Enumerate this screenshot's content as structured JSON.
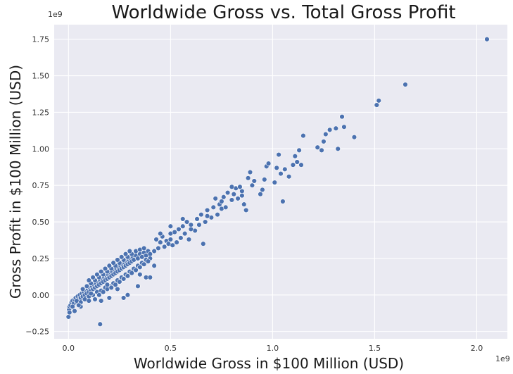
{
  "chart_data": {
    "type": "scatter",
    "title": "Worldwide Gross vs. Total Gross Profit",
    "xlabel": "Worldwide Gross in $100 Million (USD)",
    "ylabel": "Gross Profit in $100 Million (USD)",
    "x_offset_label": "1e9",
    "y_offset_label": "1e9",
    "xlim": [
      -0.07,
      2.15
    ],
    "ylim": [
      -0.3,
      1.85
    ],
    "x_ticks": [
      0.0,
      0.5,
      1.0,
      1.5,
      2.0
    ],
    "x_tick_labels": [
      "0.0",
      "0.5",
      "1.0",
      "1.5",
      "2.0"
    ],
    "y_ticks": [
      -0.25,
      0.0,
      0.25,
      0.5,
      0.75,
      1.0,
      1.25,
      1.5,
      1.75
    ],
    "y_tick_labels": [
      "−0.25",
      "0.00",
      "0.25",
      "0.50",
      "0.75",
      "1.00",
      "1.25",
      "1.50",
      "1.75"
    ],
    "grid": true,
    "point_color": "#4c72b0",
    "background_color": "#eaeaf2",
    "series": [
      {
        "points": [
          [
            0.0,
            -0.15
          ],
          [
            0.003,
            -0.1
          ],
          [
            0.005,
            -0.08
          ],
          [
            0.01,
            -0.07
          ],
          [
            0.015,
            -0.05
          ],
          [
            0.02,
            -0.04
          ],
          [
            0.025,
            -0.06
          ],
          [
            0.03,
            -0.03
          ],
          [
            0.035,
            -0.02
          ],
          [
            0.04,
            -0.05
          ],
          [
            0.045,
            -0.01
          ],
          [
            0.05,
            -0.03
          ],
          [
            0.055,
            0.0
          ],
          [
            0.06,
            -0.02
          ],
          [
            0.065,
            0.01
          ],
          [
            0.07,
            -0.01
          ],
          [
            0.075,
            0.02
          ],
          [
            0.08,
            0.0
          ],
          [
            0.085,
            0.03
          ],
          [
            0.09,
            0.01
          ],
          [
            0.095,
            0.04
          ],
          [
            0.1,
            0.02
          ],
          [
            0.105,
            0.05
          ],
          [
            0.11,
            0.03
          ],
          [
            0.115,
            0.06
          ],
          [
            0.12,
            0.04
          ],
          [
            0.125,
            0.07
          ],
          [
            0.13,
            0.05
          ],
          [
            0.135,
            0.08
          ],
          [
            0.14,
            0.06
          ],
          [
            0.145,
            0.09
          ],
          [
            0.15,
            0.07
          ],
          [
            0.155,
            0.1
          ],
          [
            0.16,
            0.08
          ],
          [
            0.165,
            0.11
          ],
          [
            0.17,
            0.09
          ],
          [
            0.175,
            0.12
          ],
          [
            0.18,
            0.1
          ],
          [
            0.185,
            0.13
          ],
          [
            0.19,
            0.11
          ],
          [
            0.195,
            0.14
          ],
          [
            0.2,
            0.12
          ],
          [
            0.205,
            0.15
          ],
          [
            0.21,
            0.13
          ],
          [
            0.215,
            0.16
          ],
          [
            0.22,
            0.14
          ],
          [
            0.225,
            0.17
          ],
          [
            0.23,
            0.15
          ],
          [
            0.235,
            0.18
          ],
          [
            0.24,
            0.16
          ],
          [
            0.245,
            0.19
          ],
          [
            0.25,
            0.17
          ],
          [
            0.255,
            0.2
          ],
          [
            0.26,
            0.18
          ],
          [
            0.265,
            0.21
          ],
          [
            0.27,
            0.19
          ],
          [
            0.275,
            0.22
          ],
          [
            0.28,
            0.2
          ],
          [
            0.285,
            0.23
          ],
          [
            0.29,
            0.21
          ],
          [
            0.295,
            0.24
          ],
          [
            0.3,
            0.22
          ],
          [
            0.305,
            0.25
          ],
          [
            0.31,
            0.23
          ],
          [
            0.315,
            0.26
          ],
          [
            0.32,
            0.24
          ],
          [
            0.33,
            0.27
          ],
          [
            0.34,
            0.25
          ],
          [
            0.35,
            0.28
          ],
          [
            0.36,
            0.26
          ],
          [
            0.37,
            0.29
          ],
          [
            0.38,
            0.27
          ],
          [
            0.39,
            0.3
          ],
          [
            0.4,
            0.28
          ],
          [
            0.02,
            -0.08
          ],
          [
            0.04,
            -0.04
          ],
          [
            0.06,
            -0.05
          ],
          [
            0.08,
            -0.03
          ],
          [
            0.1,
            -0.01
          ],
          [
            0.12,
            0.0
          ],
          [
            0.14,
            0.02
          ],
          [
            0.16,
            0.03
          ],
          [
            0.18,
            0.05
          ],
          [
            0.2,
            0.06
          ],
          [
            0.22,
            0.08
          ],
          [
            0.24,
            0.1
          ],
          [
            0.26,
            0.12
          ],
          [
            0.28,
            0.14
          ],
          [
            0.3,
            0.16
          ],
          [
            0.32,
            0.18
          ],
          [
            0.34,
            0.2
          ],
          [
            0.36,
            0.22
          ],
          [
            0.38,
            0.24
          ],
          [
            0.4,
            0.25
          ],
          [
            0.07,
            0.04
          ],
          [
            0.09,
            0.06
          ],
          [
            0.11,
            0.08
          ],
          [
            0.13,
            0.1
          ],
          [
            0.15,
            0.12
          ],
          [
            0.17,
            0.14
          ],
          [
            0.19,
            0.16
          ],
          [
            0.21,
            0.18
          ],
          [
            0.23,
            0.2
          ],
          [
            0.25,
            0.22
          ],
          [
            0.27,
            0.24
          ],
          [
            0.29,
            0.26
          ],
          [
            0.31,
            0.28
          ],
          [
            0.33,
            0.3
          ],
          [
            0.35,
            0.31
          ],
          [
            0.37,
            0.32
          ],
          [
            0.1,
            0.1
          ],
          [
            0.12,
            0.12
          ],
          [
            0.14,
            0.14
          ],
          [
            0.16,
            0.16
          ],
          [
            0.18,
            0.18
          ],
          [
            0.2,
            0.2
          ],
          [
            0.22,
            0.22
          ],
          [
            0.24,
            0.24
          ],
          [
            0.26,
            0.26
          ],
          [
            0.28,
            0.28
          ],
          [
            0.3,
            0.3
          ],
          [
            0.15,
            0.0
          ],
          [
            0.17,
            0.02
          ],
          [
            0.19,
            0.04
          ],
          [
            0.21,
            0.05
          ],
          [
            0.23,
            0.07
          ],
          [
            0.25,
            0.09
          ],
          [
            0.27,
            0.11
          ],
          [
            0.29,
            0.13
          ],
          [
            0.31,
            0.15
          ],
          [
            0.33,
            0.17
          ],
          [
            0.35,
            0.19
          ],
          [
            0.37,
            0.21
          ],
          [
            0.39,
            0.23
          ],
          [
            0.13,
            -0.03
          ],
          [
            0.16,
            -0.04
          ],
          [
            0.2,
            -0.02
          ],
          [
            0.27,
            -0.02
          ],
          [
            0.29,
            0.0
          ],
          [
            0.34,
            0.06
          ],
          [
            0.38,
            0.12
          ],
          [
            0.42,
            0.2
          ],
          [
            0.35,
            0.14
          ],
          [
            0.24,
            0.04
          ],
          [
            0.19,
            0.07
          ],
          [
            0.11,
            0.01
          ],
          [
            0.06,
            -0.08
          ],
          [
            0.03,
            -0.11
          ],
          [
            0.005,
            -0.12
          ],
          [
            0.05,
            -0.07
          ],
          [
            0.1,
            -0.04
          ],
          [
            0.155,
            -0.2
          ],
          [
            0.42,
            0.3
          ],
          [
            0.44,
            0.32
          ],
          [
            0.43,
            0.38
          ],
          [
            0.45,
            0.36
          ],
          [
            0.46,
            0.4
          ],
          [
            0.47,
            0.33
          ],
          [
            0.48,
            0.37
          ],
          [
            0.49,
            0.35
          ],
          [
            0.5,
            0.38
          ],
          [
            0.5,
            0.47
          ],
          [
            0.51,
            0.34
          ],
          [
            0.52,
            0.43
          ],
          [
            0.53,
            0.36
          ],
          [
            0.54,
            0.45
          ],
          [
            0.55,
            0.39
          ],
          [
            0.56,
            0.47
          ],
          [
            0.57,
            0.42
          ],
          [
            0.58,
            0.5
          ],
          [
            0.59,
            0.38
          ],
          [
            0.6,
            0.48
          ],
          [
            0.62,
            0.44
          ],
          [
            0.63,
            0.52
          ],
          [
            0.64,
            0.48
          ],
          [
            0.65,
            0.55
          ],
          [
            0.66,
            0.35
          ],
          [
            0.67,
            0.5
          ],
          [
            0.68,
            0.58
          ],
          [
            0.7,
            0.53
          ],
          [
            0.71,
            0.6
          ],
          [
            0.72,
            0.66
          ],
          [
            0.73,
            0.55
          ],
          [
            0.74,
            0.62
          ],
          [
            0.75,
            0.59
          ],
          [
            0.76,
            0.67
          ],
          [
            0.77,
            0.6
          ],
          [
            0.78,
            0.7
          ],
          [
            0.8,
            0.65
          ],
          [
            0.81,
            0.69
          ],
          [
            0.82,
            0.73
          ],
          [
            0.83,
            0.66
          ],
          [
            0.84,
            0.74
          ],
          [
            0.85,
            0.71
          ],
          [
            0.86,
            0.62
          ],
          [
            0.87,
            0.58
          ],
          [
            0.88,
            0.8
          ],
          [
            0.89,
            0.84
          ],
          [
            0.9,
            0.75
          ],
          [
            0.91,
            0.78
          ],
          [
            0.4,
            0.12
          ],
          [
            0.45,
            0.42
          ],
          [
            0.5,
            0.42
          ],
          [
            0.56,
            0.52
          ],
          [
            0.6,
            0.45
          ],
          [
            0.68,
            0.54
          ],
          [
            0.75,
            0.64
          ],
          [
            0.8,
            0.74
          ],
          [
            0.85,
            0.68
          ],
          [
            0.94,
            0.69
          ],
          [
            0.95,
            0.72
          ],
          [
            0.96,
            0.79
          ],
          [
            0.97,
            0.88
          ],
          [
            0.98,
            0.9
          ],
          [
            1.01,
            0.77
          ],
          [
            1.02,
            0.87
          ],
          [
            1.03,
            0.96
          ],
          [
            1.04,
            0.83
          ],
          [
            1.05,
            0.64
          ],
          [
            1.06,
            0.86
          ],
          [
            1.08,
            0.81
          ],
          [
            1.1,
            0.89
          ],
          [
            1.11,
            0.95
          ],
          [
            1.12,
            0.91
          ],
          [
            1.13,
            0.99
          ],
          [
            1.14,
            0.89
          ],
          [
            1.15,
            1.09
          ],
          [
            1.22,
            1.01
          ],
          [
            1.24,
            0.99
          ],
          [
            1.25,
            1.05
          ],
          [
            1.26,
            1.1
          ],
          [
            1.28,
            1.13
          ],
          [
            1.31,
            1.14
          ],
          [
            1.32,
            1.0
          ],
          [
            1.34,
            1.22
          ],
          [
            1.35,
            1.15
          ],
          [
            1.4,
            1.08
          ],
          [
            1.51,
            1.3
          ],
          [
            1.52,
            1.33
          ],
          [
            1.65,
            1.44
          ],
          [
            2.05,
            1.75
          ]
        ]
      }
    ]
  }
}
